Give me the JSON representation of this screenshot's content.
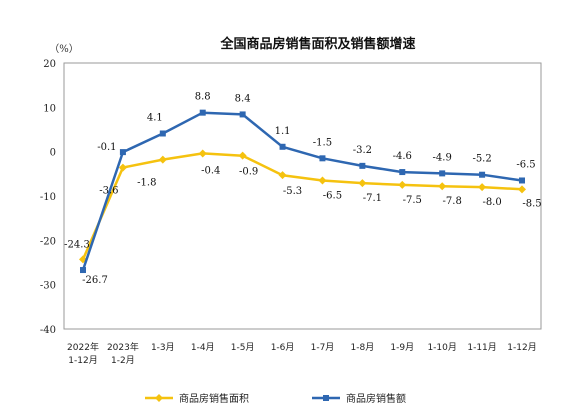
{
  "chart_data": {
    "type": "line",
    "title": "全国商品房销售面积及销售额增速",
    "unit_label": "（%）",
    "categories": [
      [
        "2022年",
        "1-12月"
      ],
      [
        "2023年",
        "1-2月"
      ],
      [
        "1-3月"
      ],
      [
        "1-4月"
      ],
      [
        "1-5月"
      ],
      [
        "1-6月"
      ],
      [
        "1-7月"
      ],
      [
        "1-8月"
      ],
      [
        "1-9月"
      ],
      [
        "1-10月"
      ],
      [
        "1-11月"
      ],
      [
        "1-12月"
      ]
    ],
    "ylim": [
      -40,
      20
    ],
    "yticks": [
      20,
      10,
      0,
      -10,
      -20,
      -30,
      -40
    ],
    "grid": false,
    "legend_position": "bottom",
    "series": [
      {
        "name": "商品房销售面积",
        "color": "#F5C20F",
        "marker": "diamond",
        "values": [
          -24.3,
          -3.6,
          -1.8,
          -0.4,
          -0.9,
          -5.3,
          -6.5,
          -7.1,
          -7.5,
          -7.8,
          -8.0,
          -8.5
        ],
        "labels": [
          "-24.3",
          "-3.6",
          "-1.8",
          "-0.4",
          "-0.9",
          "-5.3",
          "-6.5",
          "-7.1",
          "-7.5",
          "-7.8",
          "-8.0",
          "-8.5"
        ]
      },
      {
        "name": "商品房销售额",
        "color": "#2E67B1",
        "marker": "square",
        "values": [
          -26.7,
          -0.1,
          4.1,
          8.8,
          8.4,
          1.1,
          -1.5,
          -3.2,
          -4.6,
          -4.9,
          -5.2,
          -6.5
        ],
        "labels": [
          "-26.7",
          "-0.1",
          "4.1",
          "8.8",
          "8.4",
          "1.1",
          "-1.5",
          "-3.2",
          "-4.6",
          "-4.9",
          "-5.2",
          "-6.5"
        ]
      }
    ]
  }
}
